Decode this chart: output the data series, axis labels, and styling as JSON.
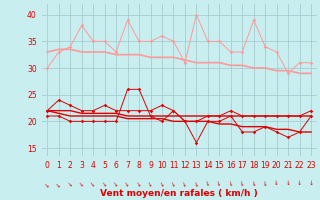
{
  "x": [
    0,
    1,
    2,
    3,
    4,
    5,
    6,
    7,
    8,
    9,
    10,
    11,
    12,
    13,
    14,
    15,
    16,
    17,
    18,
    19,
    20,
    21,
    22,
    23
  ],
  "rafales": [
    30,
    33,
    34,
    38,
    35,
    35,
    33,
    39,
    35,
    35,
    36,
    35,
    31,
    40,
    35,
    35,
    33,
    33,
    39,
    34,
    33,
    29,
    31,
    31
  ],
  "rafales_smooth": [
    33,
    33.5,
    33.5,
    33,
    33,
    33,
    32.5,
    32.5,
    32.5,
    32,
    32,
    32,
    31.5,
    31,
    31,
    31,
    30.5,
    30.5,
    30,
    30,
    29.5,
    29.5,
    29,
    29
  ],
  "moy_main": [
    22,
    24,
    23,
    22,
    22,
    23,
    22,
    22,
    22,
    22,
    23,
    22,
    20,
    20,
    21,
    21,
    22,
    21,
    21,
    21,
    21,
    21,
    21,
    22
  ],
  "moy_var": [
    21,
    21,
    20,
    20,
    20,
    20,
    20,
    26,
    26,
    21,
    20,
    22,
    20,
    16,
    20,
    20,
    21,
    18,
    18,
    19,
    18,
    17,
    18,
    21
  ],
  "moy_trend1": [
    22,
    22,
    22,
    21.5,
    21.5,
    21.5,
    21.5,
    21,
    21,
    21,
    21,
    21,
    21,
    21,
    21,
    21,
    21,
    21,
    21,
    21,
    21,
    21,
    21,
    21
  ],
  "moy_trend2": [
    22,
    21.5,
    21,
    21,
    21,
    21,
    21,
    20.5,
    20.5,
    20.5,
    20.5,
    20,
    20,
    20,
    20,
    19.5,
    19.5,
    19,
    19,
    19,
    18.5,
    18.5,
    18,
    18
  ],
  "bg_color": "#c8eef0",
  "grid_color": "#a8ccd0",
  "color_pink": "#ff9999",
  "color_red": "#dd0000",
  "xlabel": "Vent moyen/en rafales ( km/h )",
  "ylim": [
    13.5,
    42
  ],
  "yticks": [
    15,
    20,
    25,
    30,
    35,
    40
  ],
  "xticks": [
    0,
    1,
    2,
    3,
    4,
    5,
    6,
    7,
    8,
    9,
    10,
    11,
    12,
    13,
    14,
    15,
    16,
    17,
    18,
    19,
    20,
    21,
    22,
    23
  ],
  "xlabel_fontsize": 6.5,
  "tick_fontsize": 5.5
}
